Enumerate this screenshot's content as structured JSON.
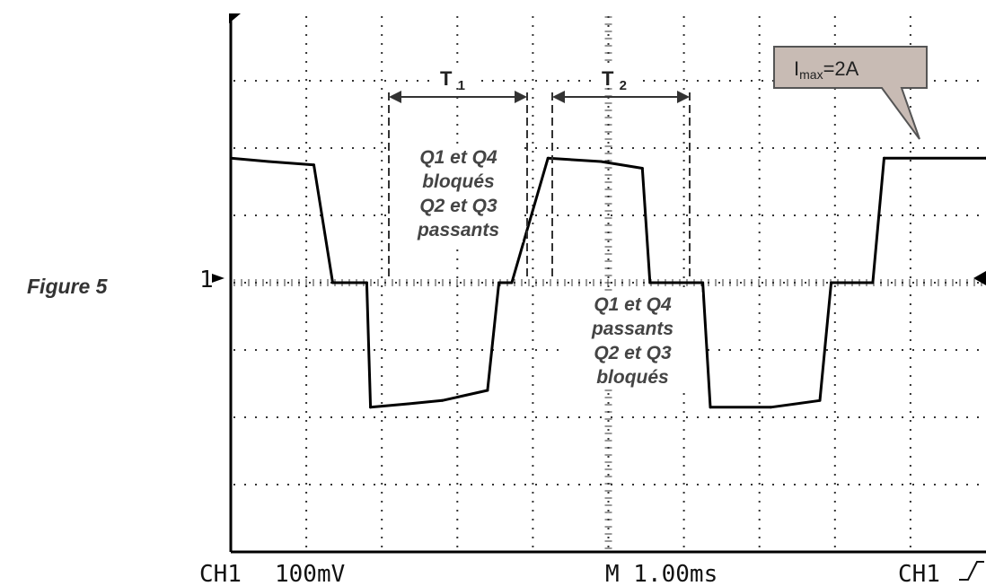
{
  "figure_label": "Figure 5",
  "scope": {
    "channel_label": "CH1",
    "volts_per_div": "100mV",
    "timebase": "M 1.00ms",
    "trigger_label": "CH1",
    "ground_marker": "1"
  },
  "annotations": {
    "t1": "T1",
    "t2": "T2",
    "note_blocked": "Q1 et Q4\nbloqués\nQ2 et Q3\npassants",
    "note_passing": "Q1 et Q4\npassants\nQ2 et Q3\nbloqués",
    "callout_prefix": "I",
    "callout_subscript": "max",
    "callout_value": "=2A"
  },
  "colors": {
    "trace": "#000000",
    "grid_dots": "#333333",
    "callout_fill": "#c8bbb4",
    "callout_stroke": "#555555"
  },
  "chart_data": {
    "type": "line",
    "xlabel": "M 1.00ms",
    "ylabel": "CH1 100mV",
    "xlim": [
      0,
      10
    ],
    "ylim": [
      -4,
      4
    ],
    "grid": true,
    "series": [
      {
        "x": [
          0.0,
          0.5,
          1.1,
          1.35,
          1.45,
          1.8,
          1.85,
          2.35,
          2.8,
          3.4,
          3.55,
          3.72,
          4.2,
          4.9,
          5.45,
          5.55,
          6.25,
          6.35,
          7.15,
          7.8,
          7.95,
          8.5,
          8.65,
          10.0
        ],
        "y": [
          1.85,
          1.8,
          1.75,
          0.0,
          0.0,
          0.0,
          -1.85,
          -1.8,
          -1.75,
          -1.6,
          0.0,
          0.0,
          1.85,
          1.8,
          1.7,
          0.0,
          0.0,
          -1.85,
          -1.85,
          -1.75,
          0.0,
          0.0,
          1.85,
          1.85
        ]
      }
    ]
  }
}
